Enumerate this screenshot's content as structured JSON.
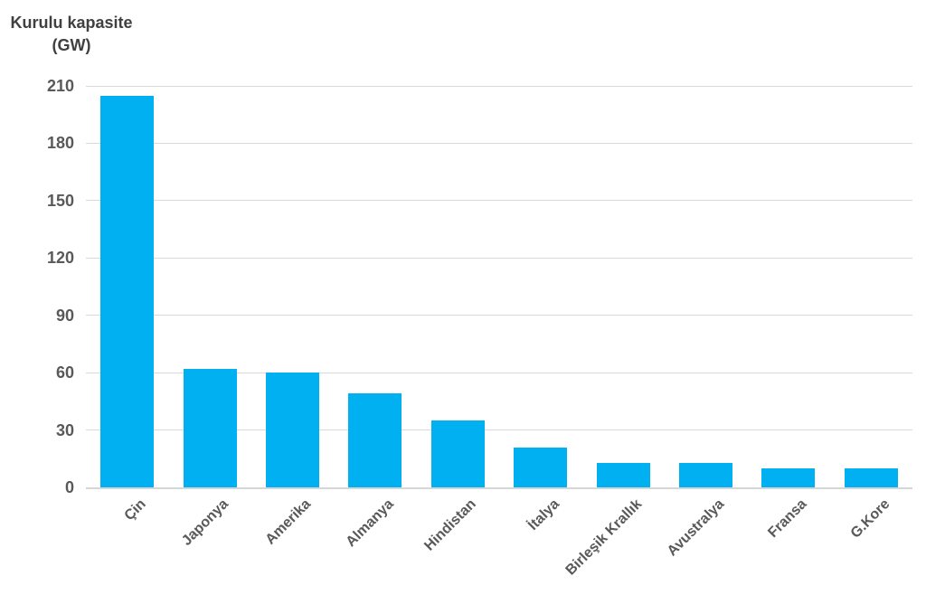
{
  "chart_data": {
    "type": "bar",
    "title_line1": "Kurulu kapasite",
    "title_line2": "(GW)",
    "ylabel": "Kurulu kapasite (GW)",
    "xlabel": "",
    "categories": [
      "Çin",
      "Japonya",
      "Amerika",
      "Almanya",
      "Hindistan",
      "İtalya",
      "Birleşik Krallık",
      "Avustralya",
      "Fransa",
      "G.Kore"
    ],
    "values": [
      205,
      62,
      60,
      49,
      35,
      21,
      13,
      13,
      10,
      10
    ],
    "ylim": [
      0,
      210
    ],
    "yticks": [
      0,
      30,
      60,
      90,
      120,
      150,
      180,
      210
    ],
    "grid": true,
    "legend": "none",
    "bar_color": "#00b0f0",
    "gridline_color": "#d9d9d9",
    "axis_text_color": "#595959",
    "title_color": "#404040",
    "background_color": "#ffffff"
  }
}
